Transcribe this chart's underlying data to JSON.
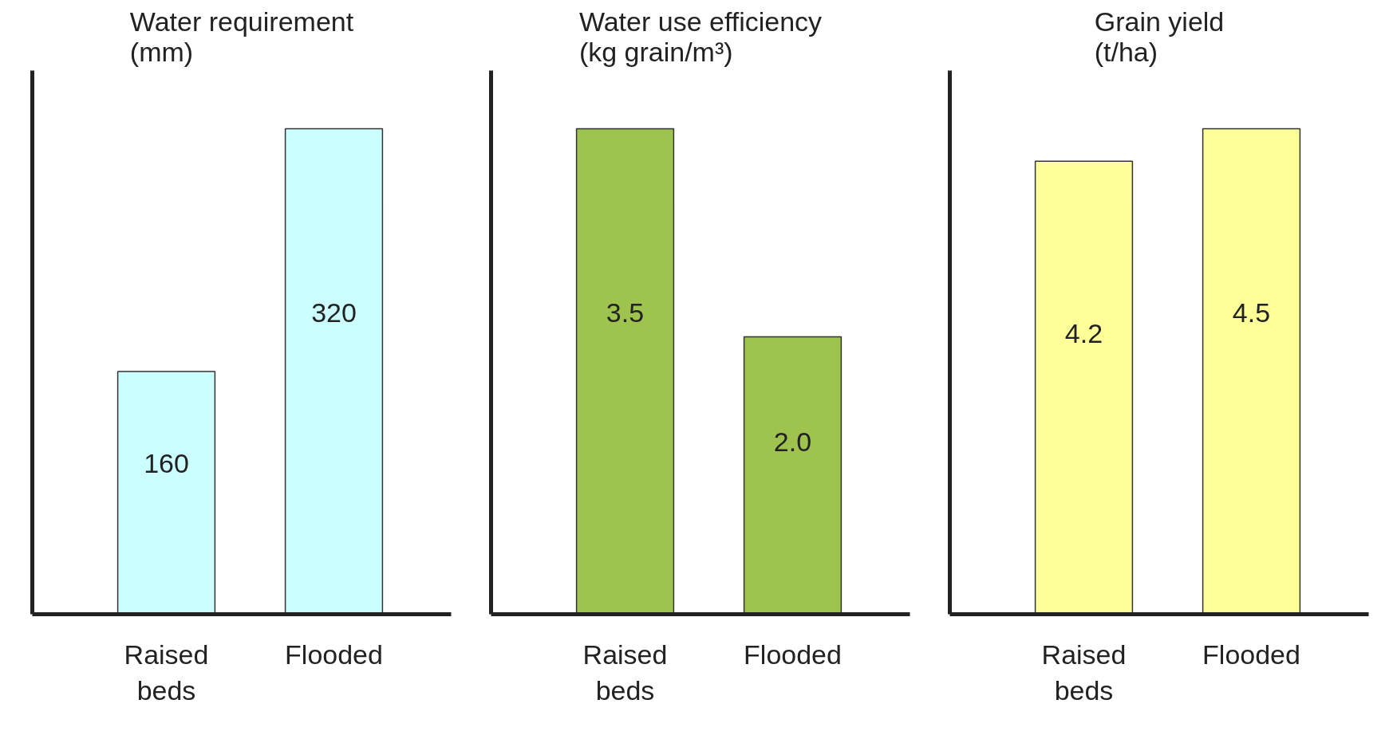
{
  "chart_data": [
    {
      "type": "bar",
      "title": "Water requirement\n(mm)",
      "categories": [
        "Raised\nbeds",
        "Flooded"
      ],
      "values": [
        160,
        320
      ],
      "value_labels": [
        "160",
        "320"
      ],
      "color": "#ccffff"
    },
    {
      "type": "bar",
      "title": "Water use efficiency\n(kg grain/m³)",
      "categories": [
        "Raised\nbeds",
        "Flooded"
      ],
      "values": [
        3.5,
        2.0
      ],
      "value_labels": [
        "3.5",
        "2.0"
      ],
      "color": "#9fc34f"
    },
    {
      "type": "bar",
      "title": "Grain yield\n(t/ha)",
      "categories": [
        "Raised\nbeds",
        "Flooded"
      ],
      "values": [
        4.2,
        4.5
      ],
      "value_labels": [
        "4.2",
        "4.5"
      ],
      "color": "#ffff99"
    }
  ]
}
